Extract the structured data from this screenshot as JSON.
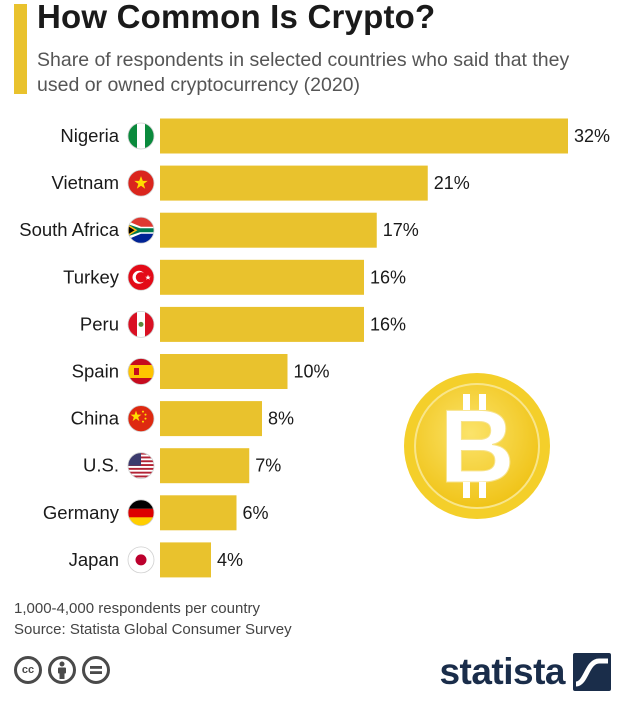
{
  "header": {
    "title": "How Common Is Crypto?",
    "subtitle": "Share of respondents in selected countries who said that they used or owned cryptocurrency (2020)"
  },
  "colors": {
    "accent": "#e9c22d",
    "bar": "#e9c22d",
    "text": "#1a1a1a",
    "subtitle": "#555555",
    "logo": "#1a2d4a"
  },
  "chart_data": {
    "type": "bar",
    "orientation": "horizontal",
    "unit": "%",
    "categories": [
      "Nigeria",
      "Vietnam",
      "South Africa",
      "Turkey",
      "Peru",
      "Spain",
      "China",
      "U.S.",
      "Germany",
      "Japan"
    ],
    "values": [
      32,
      21,
      17,
      16,
      16,
      10,
      8,
      7,
      6,
      4
    ],
    "value_labels": [
      "32%",
      "21%",
      "17%",
      "16%",
      "16%",
      "10%",
      "8%",
      "7%",
      "6%",
      "4%"
    ],
    "flags": [
      "nigeria-flag-icon",
      "vietnam-flag-icon",
      "south-africa-flag-icon",
      "turkey-flag-icon",
      "peru-flag-icon",
      "spain-flag-icon",
      "china-flag-icon",
      "us-flag-icon",
      "germany-flag-icon",
      "japan-flag-icon"
    ],
    "xlim": [
      0,
      32
    ],
    "grid": false,
    "legend": "none",
    "decoration": "bitcoin-coin-icon"
  },
  "footer": {
    "note": "1,000-4,000 respondents per country",
    "source": "Source: Statista Global Consumer Survey",
    "license_icons": [
      "creative-commons-icon",
      "attribution-icon",
      "no-derivatives-icon"
    ],
    "logo_text": "statista"
  }
}
